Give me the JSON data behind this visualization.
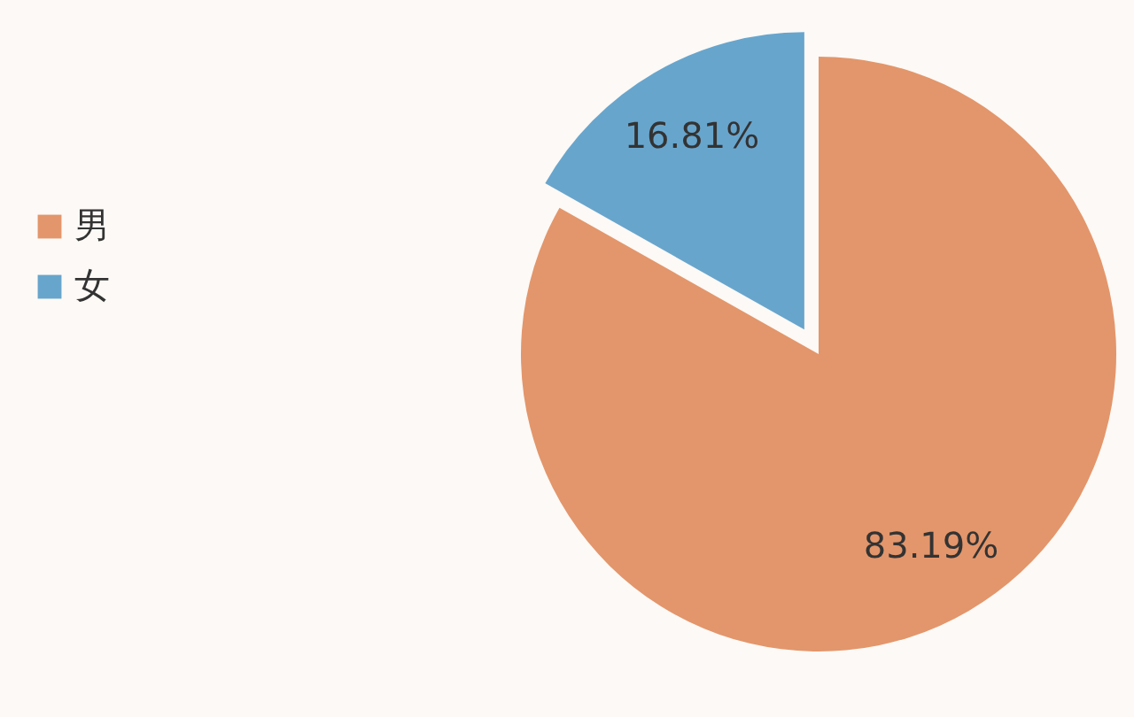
{
  "chart_data": {
    "type": "pie",
    "categories": [
      "男",
      "女"
    ],
    "values": [
      83.19,
      16.81
    ],
    "colors": [
      "#e3966b",
      "#68a5cc"
    ],
    "value_labels": [
      "83.19%",
      "16.81%"
    ],
    "legend": "left"
  }
}
